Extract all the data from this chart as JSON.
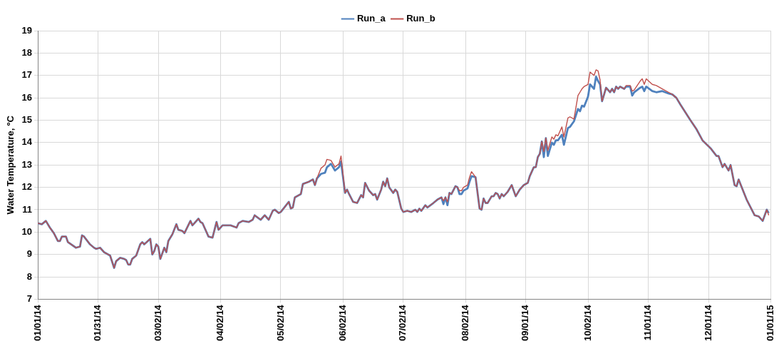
{
  "chart_data": {
    "type": "line",
    "ylabel": "Water Temperature, ºC",
    "legend": "top",
    "grid": true,
    "marker": "none",
    "line_style": "solid",
    "xlim": [
      "2014-01-01",
      "2015-01-01"
    ],
    "xticks": [
      {
        "value": "2014-01-01",
        "label": "01/01/14"
      },
      {
        "value": "2014-01-31",
        "label": "01/31/14"
      },
      {
        "value": "2014-03-02",
        "label": "03/02/14"
      },
      {
        "value": "2014-04-02",
        "label": "04/02/14"
      },
      {
        "value": "2014-05-02",
        "label": "05/02/14"
      },
      {
        "value": "2014-06-02",
        "label": "06/02/14"
      },
      {
        "value": "2014-07-02",
        "label": "07/02/14"
      },
      {
        "value": "2014-08-02",
        "label": "08/02/14"
      },
      {
        "value": "2014-09-01",
        "label": "09/01/14"
      },
      {
        "value": "2014-10-02",
        "label": "10/02/14"
      },
      {
        "value": "2014-11-01",
        "label": "11/01/14"
      },
      {
        "value": "2014-12-01",
        "label": "12/01/14"
      },
      {
        "value": "2015-01-01",
        "label": "01/01/15"
      }
    ],
    "ylim": [
      7,
      19
    ],
    "yticks": [
      7,
      8,
      9,
      10,
      11,
      12,
      13,
      14,
      15,
      16,
      17,
      18,
      19
    ],
    "x": [
      "2014-01-01",
      "2014-01-03",
      "2014-01-05",
      "2014-01-07",
      "2014-01-09",
      "2014-01-11",
      "2014-01-12",
      "2014-01-13",
      "2014-01-15",
      "2014-01-16",
      "2014-01-20",
      "2014-01-22",
      "2014-01-23",
      "2014-01-24",
      "2014-01-27",
      "2014-01-29",
      "2014-01-30",
      "2014-02-01",
      "2014-02-03",
      "2014-02-06",
      "2014-02-08",
      "2014-02-09",
      "2014-02-11",
      "2014-02-13",
      "2014-02-14",
      "2014-02-15",
      "2014-02-16",
      "2014-02-17",
      "2014-02-19",
      "2014-02-21",
      "2014-02-22",
      "2014-02-23",
      "2014-02-26",
      "2014-02-27",
      "2014-02-28",
      "2014-03-01",
      "2014-03-02",
      "2014-03-03",
      "2014-03-05",
      "2014-03-06",
      "2014-03-07",
      "2014-03-09",
      "2014-03-11",
      "2014-03-12",
      "2014-03-14",
      "2014-03-15",
      "2014-03-18",
      "2014-03-19",
      "2014-03-22",
      "2014-03-23",
      "2014-03-24",
      "2014-03-27",
      "2014-03-29",
      "2014-03-31",
      "2014-04-01",
      "2014-04-03",
      "2014-04-07",
      "2014-04-10",
      "2014-04-11",
      "2014-04-13",
      "2014-04-16",
      "2014-04-18",
      "2014-04-19",
      "2014-04-22",
      "2014-04-24",
      "2014-04-26",
      "2014-04-28",
      "2014-04-29",
      "2014-05-01",
      "2014-05-02",
      "2014-05-06",
      "2014-05-07",
      "2014-05-08",
      "2014-05-09",
      "2014-05-12",
      "2014-05-13",
      "2014-05-16",
      "2014-05-18",
      "2014-05-19",
      "2014-05-20",
      "2014-05-22",
      "2014-05-24",
      "2014-05-25",
      "2014-05-27",
      "2014-05-29",
      "2014-05-31",
      "2014-06-01",
      "2014-06-03",
      "2014-06-04",
      "2014-06-05",
      "2014-06-07",
      "2014-06-09",
      "2014-06-11",
      "2014-06-12",
      "2014-06-13",
      "2014-06-15",
      "2014-06-17",
      "2014-06-18",
      "2014-06-19",
      "2014-06-21",
      "2014-06-22",
      "2014-06-23",
      "2014-06-24",
      "2014-06-25",
      "2014-06-27",
      "2014-06-28",
      "2014-06-29",
      "2014-07-01",
      "2014-07-02",
      "2014-07-04",
      "2014-07-06",
      "2014-07-08",
      "2014-07-09",
      "2014-07-10",
      "2014-07-11",
      "2014-07-13",
      "2014-07-14",
      "2014-07-17",
      "2014-07-19",
      "2014-07-21",
      "2014-07-22",
      "2014-07-23",
      "2014-07-24",
      "2014-07-25",
      "2014-07-26",
      "2014-07-28",
      "2014-07-29",
      "2014-07-30",
      "2014-07-31",
      "2014-08-01",
      "2014-08-03",
      "2014-08-04",
      "2014-08-05",
      "2014-08-07",
      "2014-08-09",
      "2014-08-10",
      "2014-08-11",
      "2014-08-12",
      "2014-08-13",
      "2014-08-15",
      "2014-08-16",
      "2014-08-17",
      "2014-08-18",
      "2014-08-19",
      "2014-08-20",
      "2014-08-21",
      "2014-08-23",
      "2014-08-25",
      "2014-08-27",
      "2014-08-29",
      "2014-08-31",
      "2014-09-02",
      "2014-09-03",
      "2014-09-05",
      "2014-09-06",
      "2014-09-07",
      "2014-09-08",
      "2014-09-09",
      "2014-09-10",
      "2014-09-11",
      "2014-09-12",
      "2014-09-14",
      "2014-09-15",
      "2014-09-16",
      "2014-09-17",
      "2014-09-19",
      "2014-09-20",
      "2014-09-22",
      "2014-09-23",
      "2014-09-25",
      "2014-09-27",
      "2014-09-28",
      "2014-09-29",
      "2014-09-30",
      "2014-10-02",
      "2014-10-03",
      "2014-10-05",
      "2014-10-06",
      "2014-10-07",
      "2014-10-08",
      "2014-10-09",
      "2014-10-11",
      "2014-10-13",
      "2014-10-14",
      "2014-10-15",
      "2014-10-16",
      "2014-10-17",
      "2014-10-18",
      "2014-10-20",
      "2014-10-21",
      "2014-10-23",
      "2014-10-24",
      "2014-10-25",
      "2014-10-28",
      "2014-10-29",
      "2014-10-30",
      "2014-10-31",
      "2014-11-03",
      "2014-11-05",
      "2014-11-08",
      "2014-11-11",
      "2014-11-13",
      "2014-11-15",
      "2014-11-17",
      "2014-11-22",
      "2014-11-25",
      "2014-11-28",
      "2014-12-02",
      "2014-12-05",
      "2014-12-06",
      "2014-12-08",
      "2014-12-09",
      "2014-12-11",
      "2014-12-12",
      "2014-12-14",
      "2014-12-15",
      "2014-12-16",
      "2014-12-20",
      "2014-12-24",
      "2014-12-26",
      "2014-12-28",
      "2014-12-30",
      "2014-12-31"
    ],
    "series": [
      {
        "name": "Run_a",
        "color": "#4f81bd",
        "values": [
          10.4,
          10.35,
          10.5,
          10.2,
          9.95,
          9.6,
          9.6,
          9.8,
          9.8,
          9.55,
          9.3,
          9.35,
          9.85,
          9.8,
          9.45,
          9.3,
          9.25,
          9.3,
          9.1,
          8.95,
          8.4,
          8.7,
          8.85,
          8.8,
          8.75,
          8.55,
          8.55,
          8.8,
          8.95,
          9.45,
          9.55,
          9.45,
          9.7,
          9.0,
          9.15,
          9.45,
          9.35,
          8.8,
          9.3,
          9.1,
          9.6,
          9.9,
          10.35,
          10.1,
          10.05,
          9.95,
          10.5,
          10.3,
          10.6,
          10.45,
          10.4,
          9.8,
          9.75,
          10.45,
          10.1,
          10.3,
          10.3,
          10.2,
          10.4,
          10.5,
          10.45,
          10.55,
          10.75,
          10.55,
          10.75,
          10.55,
          10.95,
          11.0,
          10.85,
          10.9,
          11.35,
          11.05,
          11.1,
          11.55,
          11.7,
          12.15,
          12.25,
          12.35,
          12.1,
          12.4,
          12.6,
          12.65,
          12.9,
          13.05,
          12.75,
          12.9,
          13.15,
          11.75,
          11.9,
          11.7,
          11.35,
          11.3,
          11.65,
          11.55,
          12.2,
          11.85,
          11.65,
          11.7,
          11.45,
          11.9,
          12.25,
          12.05,
          12.4,
          12.0,
          11.75,
          11.9,
          11.8,
          11.05,
          10.9,
          10.95,
          10.9,
          11.0,
          10.9,
          11.05,
          10.95,
          11.2,
          11.1,
          11.3,
          11.45,
          11.55,
          11.25,
          11.55,
          11.2,
          11.75,
          11.7,
          12.05,
          12.0,
          11.7,
          11.7,
          11.85,
          11.95,
          12.25,
          12.5,
          12.45,
          11.05,
          11.0,
          11.5,
          11.3,
          11.3,
          11.6,
          11.6,
          11.75,
          11.7,
          11.5,
          11.7,
          11.6,
          11.8,
          12.1,
          11.6,
          11.9,
          12.1,
          12.2,
          12.5,
          12.9,
          12.9,
          13.35,
          13.5,
          14.05,
          13.35,
          14.2,
          13.4,
          14.0,
          13.9,
          14.1,
          14.1,
          14.35,
          13.9,
          14.65,
          14.7,
          14.95,
          15.5,
          15.4,
          15.65,
          15.6,
          16.05,
          16.6,
          16.4,
          16.95,
          16.75,
          16.6,
          15.85,
          16.45,
          16.25,
          16.4,
          16.25,
          16.5,
          16.4,
          16.5,
          16.4,
          16.5,
          16.5,
          16.1,
          16.25,
          16.45,
          16.5,
          16.3,
          16.5,
          16.3,
          16.25,
          16.3,
          16.2,
          16.15,
          16.0,
          15.7,
          15.0,
          14.6,
          14.1,
          13.75,
          13.4,
          13.4,
          12.9,
          13.05,
          12.75,
          13.0,
          12.1,
          12.05,
          12.35,
          11.45,
          10.75,
          10.7,
          10.5,
          11.0,
          10.85
        ]
      },
      {
        "name": "Run_b",
        "color": "#c0504d",
        "values": [
          10.4,
          10.35,
          10.5,
          10.2,
          9.95,
          9.6,
          9.6,
          9.8,
          9.8,
          9.55,
          9.3,
          9.35,
          9.85,
          9.8,
          9.45,
          9.3,
          9.25,
          9.3,
          9.1,
          8.95,
          8.4,
          8.7,
          8.85,
          8.8,
          8.75,
          8.55,
          8.55,
          8.8,
          8.95,
          9.45,
          9.55,
          9.45,
          9.7,
          9.0,
          9.15,
          9.45,
          9.35,
          8.8,
          9.3,
          9.1,
          9.6,
          9.9,
          10.35,
          10.1,
          10.05,
          9.95,
          10.5,
          10.3,
          10.6,
          10.45,
          10.4,
          9.8,
          9.75,
          10.45,
          10.1,
          10.3,
          10.3,
          10.2,
          10.4,
          10.5,
          10.45,
          10.55,
          10.75,
          10.55,
          10.75,
          10.55,
          10.95,
          11.0,
          10.85,
          10.9,
          11.35,
          11.05,
          11.1,
          11.55,
          11.7,
          12.15,
          12.25,
          12.35,
          12.1,
          12.4,
          12.85,
          13.0,
          13.25,
          13.2,
          12.9,
          13.05,
          13.4,
          11.75,
          11.9,
          11.7,
          11.35,
          11.3,
          11.65,
          11.55,
          12.2,
          11.85,
          11.65,
          11.7,
          11.45,
          11.9,
          12.25,
          12.05,
          12.4,
          12.0,
          11.75,
          11.9,
          11.8,
          11.05,
          10.9,
          10.95,
          10.9,
          11.0,
          10.9,
          11.05,
          10.95,
          11.2,
          11.1,
          11.3,
          11.45,
          11.55,
          11.4,
          11.55,
          11.35,
          11.75,
          11.7,
          12.05,
          12.0,
          11.85,
          11.85,
          12.0,
          12.1,
          12.45,
          12.7,
          12.45,
          11.05,
          11.0,
          11.5,
          11.3,
          11.3,
          11.6,
          11.6,
          11.75,
          11.7,
          11.5,
          11.7,
          11.6,
          11.8,
          12.1,
          11.6,
          11.9,
          12.1,
          12.2,
          12.5,
          12.9,
          12.9,
          13.35,
          13.5,
          14.05,
          13.6,
          14.2,
          13.65,
          14.25,
          14.15,
          14.35,
          14.3,
          14.7,
          14.25,
          15.1,
          15.15,
          15.05,
          16.1,
          16.25,
          16.4,
          16.5,
          16.6,
          17.15,
          17.0,
          17.25,
          17.2,
          16.8,
          15.85,
          16.45,
          16.25,
          16.4,
          16.25,
          16.5,
          16.4,
          16.5,
          16.4,
          16.55,
          16.55,
          16.3,
          16.35,
          16.75,
          16.85,
          16.6,
          16.85,
          16.6,
          16.55,
          16.4,
          16.25,
          16.15,
          16.0,
          15.7,
          15.0,
          14.6,
          14.1,
          13.75,
          13.4,
          13.4,
          12.9,
          13.05,
          12.75,
          13.0,
          12.1,
          12.05,
          12.35,
          11.45,
          10.75,
          10.7,
          10.5,
          11.0,
          10.75
        ]
      }
    ]
  }
}
